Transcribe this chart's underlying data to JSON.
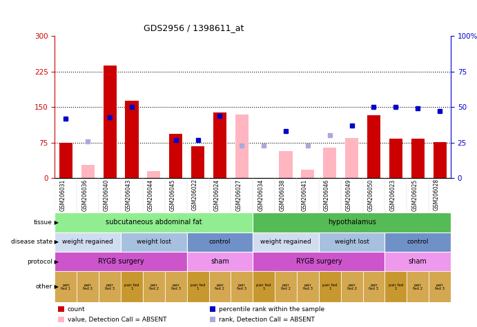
{
  "title": "GDS2956 / 1398611_at",
  "samples": [
    "GSM206031",
    "GSM206036",
    "GSM206040",
    "GSM206043",
    "GSM206044",
    "GSM206045",
    "GSM206022",
    "GSM206024",
    "GSM206027",
    "GSM206034",
    "GSM206038",
    "GSM206041",
    "GSM206046",
    "GSM206049",
    "GSM206050",
    "GSM206023",
    "GSM206025",
    "GSM206028"
  ],
  "count_values": [
    75,
    0,
    237,
    163,
    0,
    93,
    68,
    138,
    0,
    0,
    53,
    0,
    0,
    0,
    133,
    84,
    84,
    76
  ],
  "absent_value": [
    0,
    28,
    0,
    10,
    15,
    0,
    0,
    0,
    135,
    0,
    57,
    18,
    65,
    85,
    0,
    0,
    0,
    0
  ],
  "percentile_rank": [
    42,
    26,
    43,
    50,
    0,
    27,
    27,
    44,
    23,
    23,
    33,
    23,
    30,
    37,
    50,
    50,
    49,
    47
  ],
  "is_absent_count": [
    false,
    true,
    false,
    false,
    true,
    false,
    false,
    false,
    true,
    true,
    true,
    true,
    true,
    true,
    false,
    false,
    false,
    false
  ],
  "is_rank_absent": [
    false,
    true,
    false,
    false,
    true,
    false,
    false,
    false,
    true,
    true,
    false,
    true,
    true,
    false,
    false,
    false,
    false,
    false
  ],
  "tissue_groups": [
    {
      "label": "subcutaneous abdominal fat",
      "start": 0,
      "end": 9,
      "color": "#90EE90"
    },
    {
      "label": "hypothalamus",
      "start": 9,
      "end": 18,
      "color": "#55BB55"
    }
  ],
  "disease_state_groups": [
    {
      "label": "weight regained",
      "start": 0,
      "end": 3,
      "color": "#D0DCF0"
    },
    {
      "label": "weight lost",
      "start": 3,
      "end": 6,
      "color": "#A8C0E0"
    },
    {
      "label": "control",
      "start": 6,
      "end": 9,
      "color": "#7090C8"
    },
    {
      "label": "weight regained",
      "start": 9,
      "end": 12,
      "color": "#D0DCF0"
    },
    {
      "label": "weight lost",
      "start": 12,
      "end": 15,
      "color": "#A8C0E0"
    },
    {
      "label": "control",
      "start": 15,
      "end": 18,
      "color": "#7090C8"
    }
  ],
  "protocol_groups": [
    {
      "label": "RYGB surgery",
      "start": 0,
      "end": 6,
      "color": "#CC55CC"
    },
    {
      "label": "sham",
      "start": 6,
      "end": 9,
      "color": "#EE99EE"
    },
    {
      "label": "RYGB surgery",
      "start": 9,
      "end": 15,
      "color": "#CC55CC"
    },
    {
      "label": "sham",
      "start": 15,
      "end": 18,
      "color": "#EE99EE"
    }
  ],
  "other_labels": [
    "pair\nfed 1",
    "pair\nfed 2",
    "pair\nfed 3",
    "pair fed\n1",
    "pair\nfed 2",
    "pair\nfed 3",
    "pair fed\n1",
    "pair\nfed 2",
    "pair\nfed 3",
    "pair fed\n1",
    "pair\nfed 2",
    "pair\nfed 3",
    "pair fed\n1",
    "pair\nfed 2",
    "pair\nfed 3",
    "pair fed\n1",
    "pair\nfed 2",
    "pair\nfed 3"
  ],
  "other_colors": [
    "#D4A850",
    "#D4A850",
    "#D4A850",
    "#C89830",
    "#D4A850",
    "#D4A850",
    "#C89830",
    "#D4A850",
    "#D4A850",
    "#C89830",
    "#D4A850",
    "#D4A850",
    "#C89830",
    "#D4A850",
    "#D4A850",
    "#C89830",
    "#D4A850",
    "#D4A850"
  ],
  "row_labels": [
    "tissue",
    "disease state",
    "protocol",
    "other"
  ],
  "bar_color_red": "#CC0000",
  "bar_color_pink": "#FFB6C1",
  "dot_color_blue": "#0000CC",
  "dot_color_lightblue": "#AAAADD",
  "left_axis_color": "#CC0000",
  "right_axis_color": "#0000CC",
  "ylim_left": [
    0,
    300
  ],
  "ylim_right": [
    0,
    100
  ],
  "yticks_left": [
    0,
    75,
    150,
    225,
    300
  ],
  "yticks_right": [
    0,
    25,
    50,
    75,
    100
  ],
  "legend_items": [
    {
      "label": "count",
      "color": "#CC0000"
    },
    {
      "label": "percentile rank within the sample",
      "color": "#0000CC"
    },
    {
      "label": "value, Detection Call = ABSENT",
      "color": "#FFB6C1"
    },
    {
      "label": "rank, Detection Call = ABSENT",
      "color": "#AAAADD"
    }
  ]
}
